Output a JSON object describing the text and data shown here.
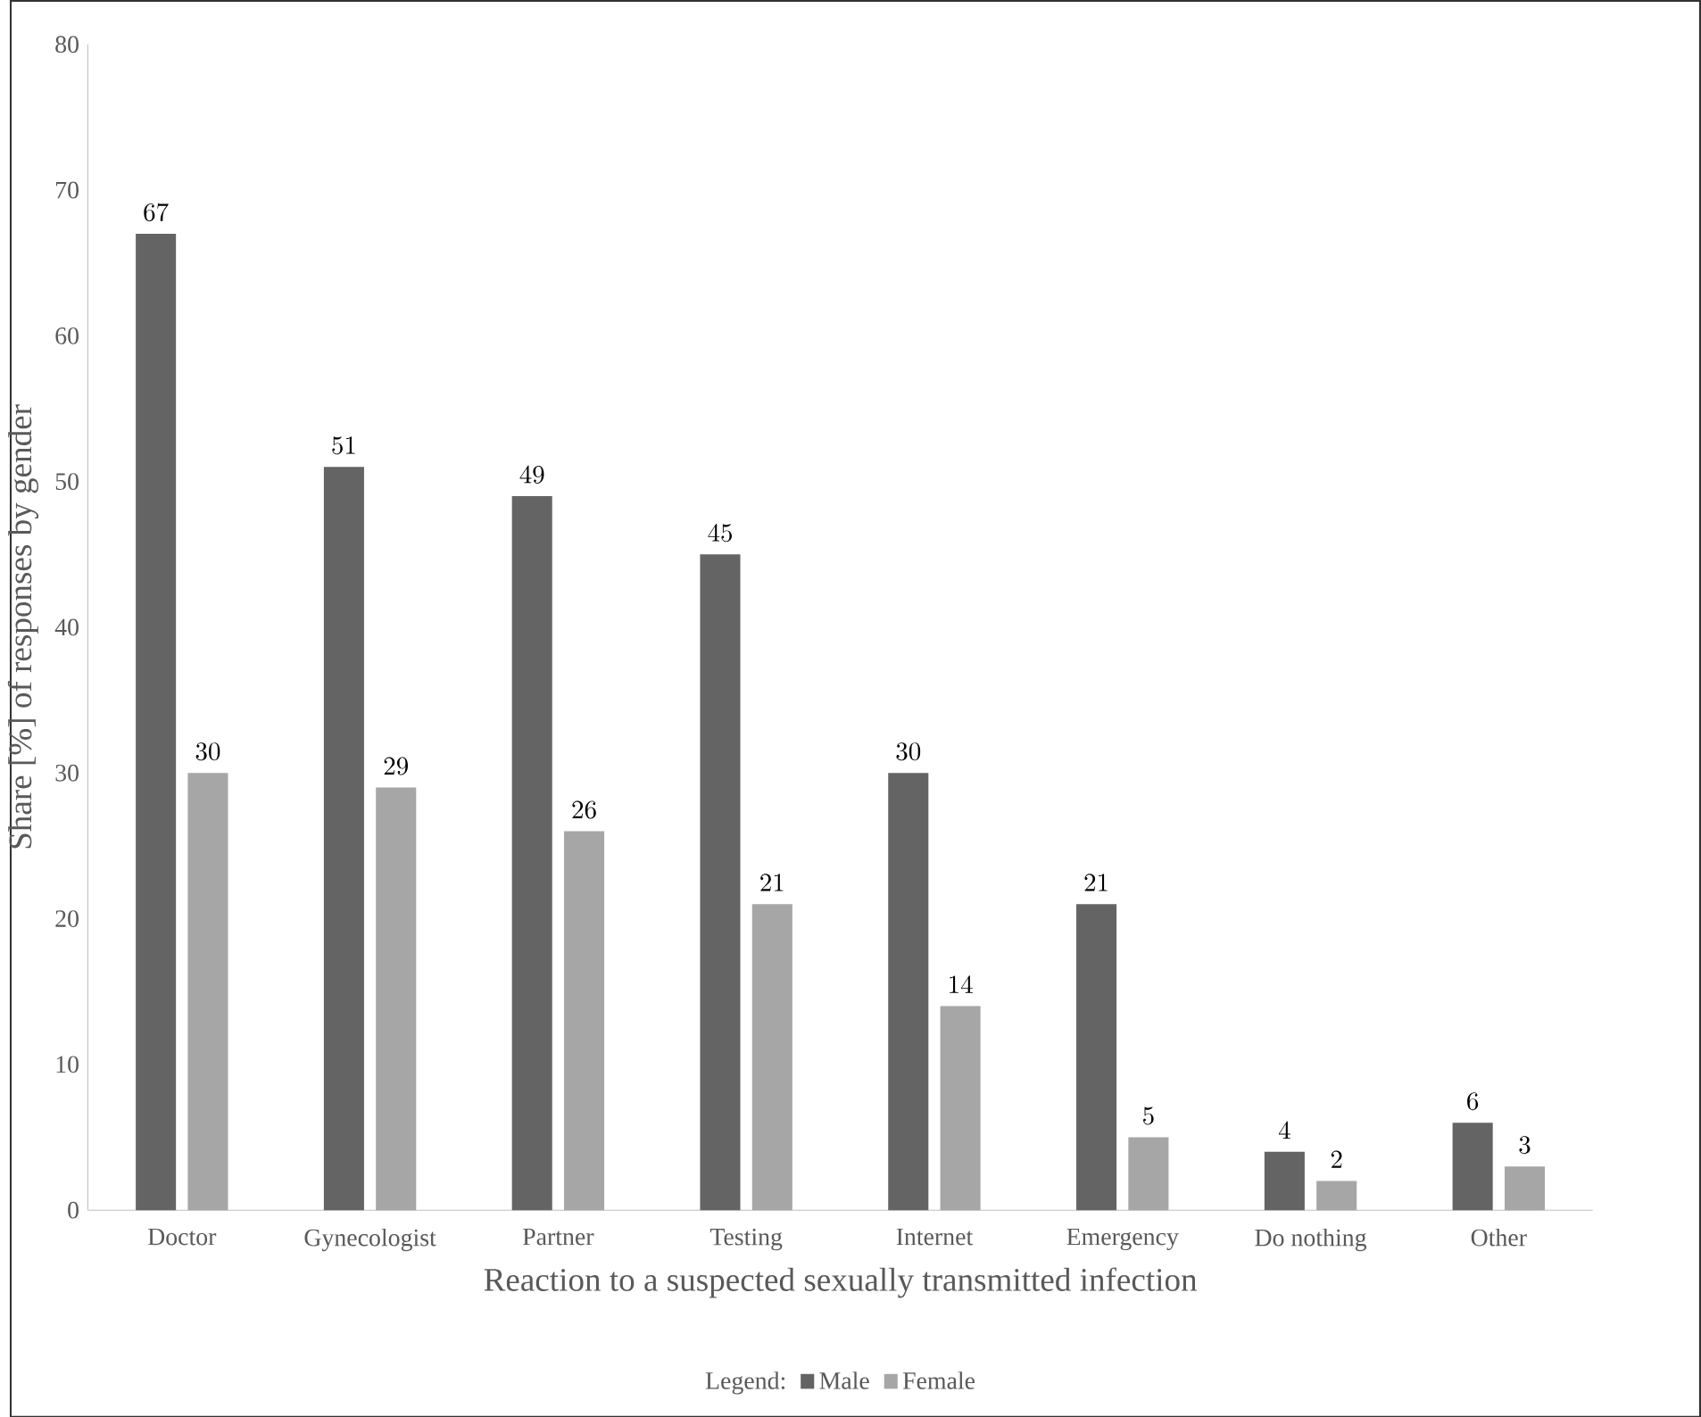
{
  "chart_data": {
    "type": "bar",
    "xlabel": "Reaction to a suspected sexually transmitted infection",
    "ylabel": "Share [%] of responses by gender",
    "legend_title": "Legend:",
    "categories": [
      "Doctor",
      "Gynecologist",
      "Partner",
      "Testing",
      "Internet",
      "Emergency",
      "Do nothing",
      "Other"
    ],
    "series": [
      {
        "name": "Male",
        "color": "#646464",
        "values": [
          67,
          51,
          49,
          45,
          30,
          21,
          4,
          6
        ]
      },
      {
        "name": "Female",
        "color": "#a6a6a6",
        "values": [
          30,
          29,
          26,
          21,
          14,
          5,
          2,
          3
        ]
      }
    ],
    "ylim": [
      0,
      80
    ],
    "yticks": [
      0,
      10,
      20,
      30,
      40,
      50,
      60,
      70,
      80
    ],
    "data_labels": true,
    "legend": "bottom",
    "grid": false
  }
}
